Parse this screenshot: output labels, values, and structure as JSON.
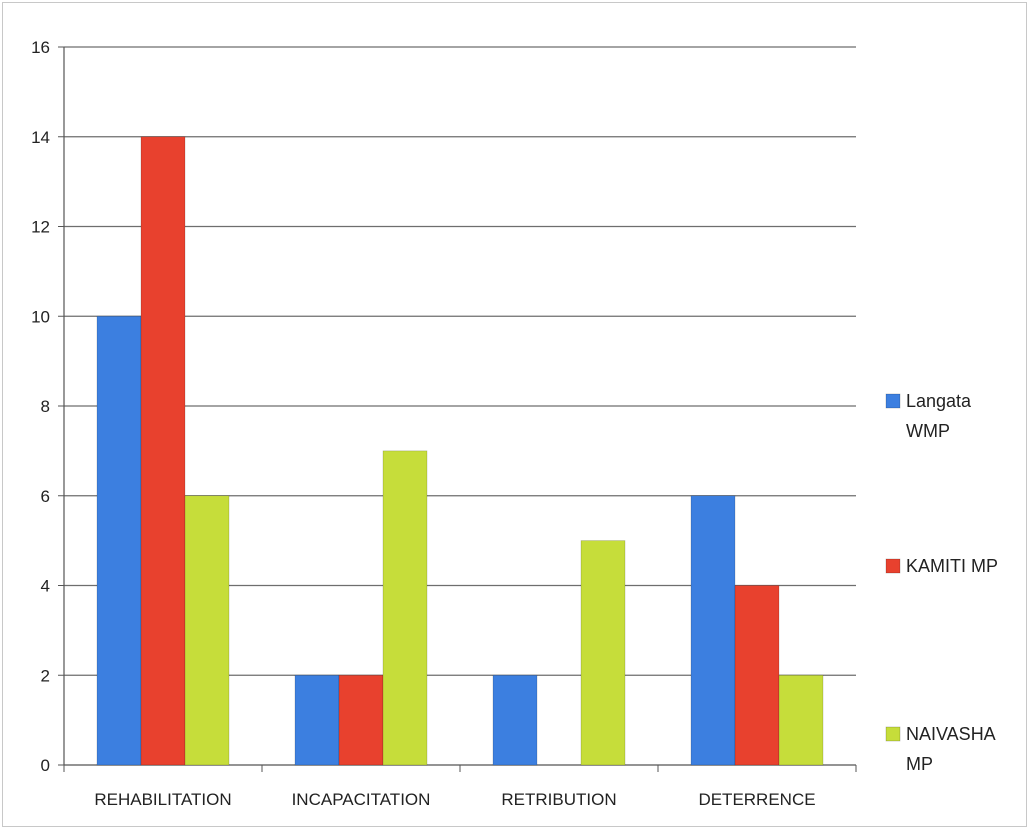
{
  "chart_data": {
    "type": "bar",
    "title": "",
    "xlabel": "",
    "ylabel": "",
    "categories": [
      "REHABILITATION",
      "INCAPACITATION",
      "RETRIBUTION",
      "DETERRENCE"
    ],
    "series": [
      {
        "name": "Langata WMP",
        "legend_lines": [
          "Langata",
          "WMP"
        ],
        "color": "#3c7fe0",
        "values": [
          10,
          2,
          2,
          6
        ]
      },
      {
        "name": "KAMITI MP",
        "legend_lines": [
          "KAMITI MP"
        ],
        "color": "#e8412e",
        "values": [
          14,
          2,
          0,
          4
        ]
      },
      {
        "name": "NAIVASHA MP",
        "legend_lines": [
          "NAIVASHA",
          "MP"
        ],
        "color": "#c6dd3a",
        "values": [
          6,
          7,
          5,
          2
        ]
      }
    ],
    "ylim": [
      0,
      16
    ],
    "yticks": [
      0,
      2,
      4,
      6,
      8,
      10,
      12,
      14,
      16
    ],
    "grid": true,
    "legend_position": "right"
  }
}
